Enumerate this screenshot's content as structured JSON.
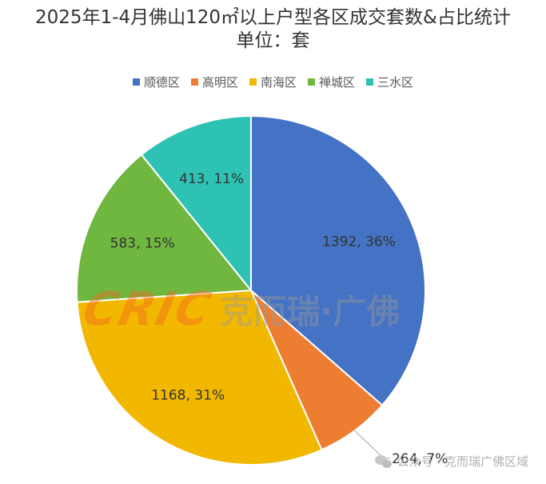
{
  "title": {
    "line1": "2025年1-4月佛山120㎡以上户型各区成交套数&占比统计",
    "line2": "单位：套"
  },
  "chart_data": {
    "type": "pie",
    "categories": [
      "顺德区",
      "高明区",
      "南海区",
      "禅城区",
      "三水区"
    ],
    "values": [
      1392,
      264,
      1168,
      583,
      413
    ],
    "percent_labels": [
      "36%",
      "7%",
      "31%",
      "15%",
      "11%"
    ],
    "data_labels": [
      "1392, 36%",
      "264, 7%",
      "1168, 31%",
      "583, 15%",
      "413, 11%"
    ],
    "colors": [
      "#4472C4",
      "#ED7D31",
      "#F2B800",
      "#70B73F",
      "#2EC2B5"
    ],
    "legend_position": "top",
    "start_angle_deg": 0,
    "direction": "clockwise"
  },
  "watermark": {
    "logo": "CRIC",
    "text": "克而瑞·广佛"
  },
  "footer": {
    "icon": "wechat-icon",
    "text": "公众号 · 克而瑞广佛区域"
  }
}
